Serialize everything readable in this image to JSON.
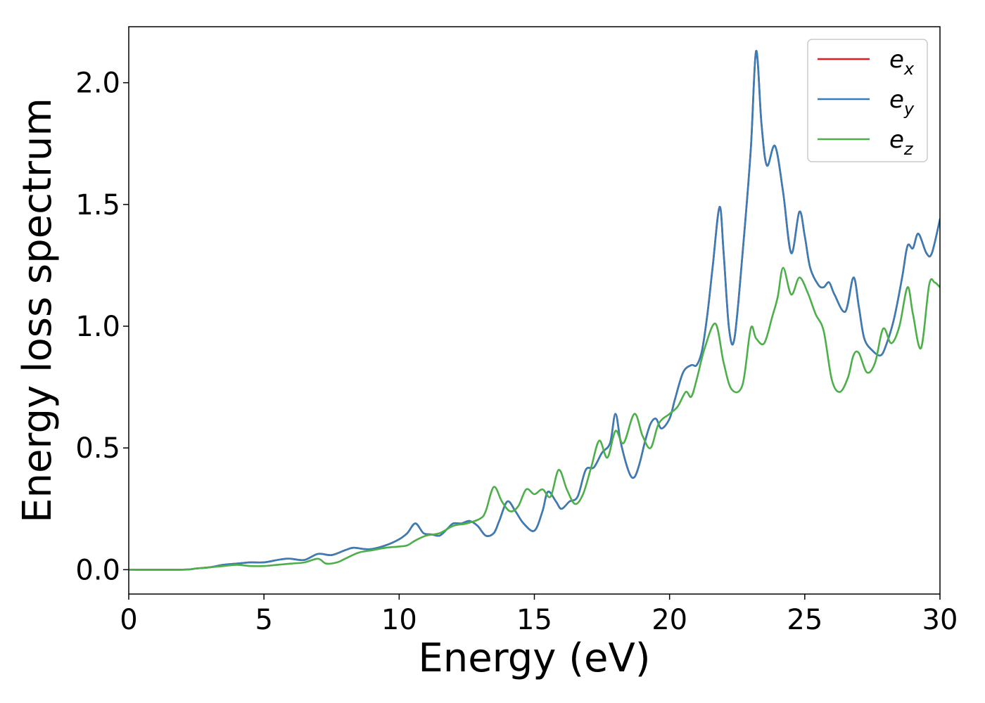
{
  "chart_data": {
    "type": "line",
    "title": "",
    "xlabel": "Energy (eV)",
    "ylabel": "Energy loss spectrum",
    "xlim": [
      0,
      30
    ],
    "ylim": [
      -0.1,
      2.23
    ],
    "xticks": [
      0,
      5,
      10,
      15,
      20,
      25,
      30
    ],
    "yticks": [
      0.0,
      0.5,
      1.0,
      1.5,
      2.0
    ],
    "xtick_labels": [
      "0",
      "5",
      "10",
      "15",
      "20",
      "25",
      "30"
    ],
    "ytick_labels": [
      "0.0",
      "0.5",
      "1.0",
      "1.5",
      "2.0"
    ],
    "grid": false,
    "legend": {
      "placement": "top-right",
      "entries": [
        {
          "base": "e",
          "sub": "x",
          "color": "#e41a1c"
        },
        {
          "base": "e",
          "sub": "y",
          "color": "#377eb8"
        },
        {
          "base": "e",
          "sub": "z",
          "color": "#4daf4a"
        }
      ]
    },
    "series": [
      {
        "name": "ex",
        "color": "#e41a1c",
        "x": [
          0,
          2,
          2.5,
          3,
          3.5,
          4,
          4.5,
          5,
          5.5,
          5.8,
          6,
          6.5,
          7,
          7.5,
          8,
          8.3,
          8.7,
          9,
          9.5,
          10,
          10.3,
          10.6,
          10.9,
          11.2,
          11.5,
          11.8,
          12,
          12.3,
          12.6,
          12.9,
          13.2,
          13.5,
          13.7,
          14,
          14.3,
          14.6,
          15,
          15.3,
          15.5,
          15.8,
          16,
          16.3,
          16.6,
          16.9,
          17.2,
          17.5,
          17.8,
          18,
          18.2,
          18.5,
          18.7,
          18.9,
          19.1,
          19.3,
          19.5,
          19.7,
          20,
          20.2,
          20.5,
          20.8,
          21,
          21.2,
          21.4,
          21.6,
          21.85,
          22,
          22.2,
          22.4,
          22.7,
          23,
          23.2,
          23.4,
          23.6,
          23.9,
          24.2,
          24.5,
          24.8,
          25,
          25.2,
          25.5,
          25.7,
          25.9,
          26.1,
          26.5,
          26.8,
          27,
          27.2,
          27.5,
          27.8,
          28,
          28.3,
          28.6,
          28.8,
          29,
          29.2,
          29.5,
          29.7,
          30
        ],
        "y": [
          0,
          0,
          0.005,
          0.01,
          0.02,
          0.025,
          0.03,
          0.03,
          0.04,
          0.045,
          0.045,
          0.04,
          0.065,
          0.06,
          0.08,
          0.09,
          0.085,
          0.085,
          0.1,
          0.125,
          0.15,
          0.19,
          0.15,
          0.145,
          0.14,
          0.17,
          0.19,
          0.19,
          0.2,
          0.18,
          0.14,
          0.15,
          0.2,
          0.28,
          0.24,
          0.19,
          0.16,
          0.24,
          0.32,
          0.28,
          0.25,
          0.28,
          0.3,
          0.41,
          0.42,
          0.48,
          0.52,
          0.64,
          0.52,
          0.4,
          0.38,
          0.44,
          0.53,
          0.6,
          0.62,
          0.58,
          0.62,
          0.7,
          0.81,
          0.84,
          0.84,
          0.9,
          1.05,
          1.25,
          1.49,
          1.3,
          0.99,
          0.95,
          1.3,
          1.72,
          2.13,
          1.83,
          1.66,
          1.74,
          1.55,
          1.3,
          1.47,
          1.37,
          1.24,
          1.17,
          1.16,
          1.18,
          1.13,
          1.06,
          1.2,
          1.08,
          0.95,
          0.9,
          0.88,
          0.92,
          1.03,
          1.2,
          1.33,
          1.32,
          1.38,
          1.3,
          1.3,
          1.44
        ]
      },
      {
        "name": "ey",
        "color": "#377eb8",
        "x": [
          0,
          2,
          2.5,
          3,
          3.5,
          4,
          4.5,
          5,
          5.5,
          5.8,
          6,
          6.5,
          7,
          7.5,
          8,
          8.3,
          8.7,
          9,
          9.5,
          10,
          10.3,
          10.6,
          10.9,
          11.2,
          11.5,
          11.8,
          12,
          12.3,
          12.6,
          12.9,
          13.2,
          13.5,
          13.7,
          14,
          14.3,
          14.6,
          15,
          15.3,
          15.5,
          15.8,
          16,
          16.3,
          16.6,
          16.9,
          17.2,
          17.5,
          17.8,
          18,
          18.2,
          18.5,
          18.7,
          18.9,
          19.1,
          19.3,
          19.5,
          19.7,
          20,
          20.2,
          20.5,
          20.8,
          21,
          21.2,
          21.4,
          21.6,
          21.85,
          22,
          22.2,
          22.4,
          22.7,
          23,
          23.2,
          23.4,
          23.6,
          23.9,
          24.2,
          24.5,
          24.8,
          25,
          25.2,
          25.5,
          25.7,
          25.9,
          26.1,
          26.5,
          26.8,
          27,
          27.2,
          27.5,
          27.8,
          28,
          28.3,
          28.6,
          28.8,
          29,
          29.2,
          29.5,
          29.7,
          30
        ],
        "y": [
          0,
          0,
          0.005,
          0.01,
          0.02,
          0.025,
          0.03,
          0.03,
          0.04,
          0.045,
          0.045,
          0.04,
          0.065,
          0.06,
          0.08,
          0.09,
          0.085,
          0.085,
          0.1,
          0.125,
          0.15,
          0.19,
          0.15,
          0.145,
          0.14,
          0.17,
          0.19,
          0.19,
          0.2,
          0.18,
          0.14,
          0.15,
          0.2,
          0.28,
          0.24,
          0.19,
          0.16,
          0.24,
          0.32,
          0.28,
          0.25,
          0.28,
          0.3,
          0.41,
          0.42,
          0.48,
          0.52,
          0.64,
          0.52,
          0.4,
          0.38,
          0.44,
          0.53,
          0.6,
          0.62,
          0.58,
          0.62,
          0.7,
          0.81,
          0.84,
          0.84,
          0.9,
          1.05,
          1.25,
          1.49,
          1.3,
          0.99,
          0.95,
          1.3,
          1.72,
          2.13,
          1.83,
          1.66,
          1.74,
          1.55,
          1.3,
          1.47,
          1.37,
          1.24,
          1.17,
          1.16,
          1.18,
          1.13,
          1.06,
          1.2,
          1.08,
          0.95,
          0.9,
          0.88,
          0.92,
          1.03,
          1.2,
          1.33,
          1.32,
          1.38,
          1.3,
          1.3,
          1.44
        ]
      },
      {
        "name": "ez",
        "color": "#4daf4a",
        "x": [
          0,
          2,
          2.5,
          3,
          3.5,
          4,
          4.5,
          5,
          5.5,
          6,
          6.5,
          7,
          7.3,
          7.7,
          8,
          8.5,
          9,
          9.5,
          10,
          10.3,
          10.6,
          11,
          11.5,
          12,
          12.5,
          13,
          13.2,
          13.5,
          13.8,
          14.1,
          14.4,
          14.7,
          15,
          15.3,
          15.6,
          15.9,
          16.2,
          16.5,
          16.8,
          17.1,
          17.4,
          17.7,
          18,
          18.3,
          18.7,
          19,
          19.3,
          19.6,
          20,
          20.3,
          20.6,
          20.8,
          21,
          21.3,
          21.7,
          22,
          22.3,
          22.7,
          23,
          23.2,
          23.5,
          23.8,
          24,
          24.2,
          24.5,
          24.8,
          25.1,
          25.4,
          25.7,
          26,
          26.3,
          26.6,
          26.8,
          27,
          27.3,
          27.6,
          27.9,
          28.2,
          28.5,
          28.8,
          29,
          29.3,
          29.6,
          29.8,
          30
        ],
        "y": [
          0,
          0,
          0.005,
          0.01,
          0.015,
          0.02,
          0.015,
          0.015,
          0.02,
          0.025,
          0.03,
          0.045,
          0.025,
          0.03,
          0.045,
          0.07,
          0.08,
          0.09,
          0.095,
          0.1,
          0.12,
          0.14,
          0.15,
          0.18,
          0.19,
          0.21,
          0.24,
          0.34,
          0.28,
          0.24,
          0.26,
          0.33,
          0.31,
          0.33,
          0.3,
          0.41,
          0.33,
          0.27,
          0.31,
          0.42,
          0.53,
          0.46,
          0.57,
          0.52,
          0.64,
          0.55,
          0.5,
          0.6,
          0.64,
          0.67,
          0.73,
          0.71,
          0.78,
          0.91,
          1.01,
          0.85,
          0.74,
          0.76,
          0.99,
          0.95,
          0.93,
          1.04,
          1.12,
          1.24,
          1.13,
          1.2,
          1.14,
          1.05,
          0.98,
          0.78,
          0.73,
          0.79,
          0.88,
          0.89,
          0.81,
          0.85,
          0.99,
          0.93,
          1.0,
          1.16,
          1.05,
          0.91,
          1.17,
          1.18,
          1.16
        ]
      }
    ]
  }
}
